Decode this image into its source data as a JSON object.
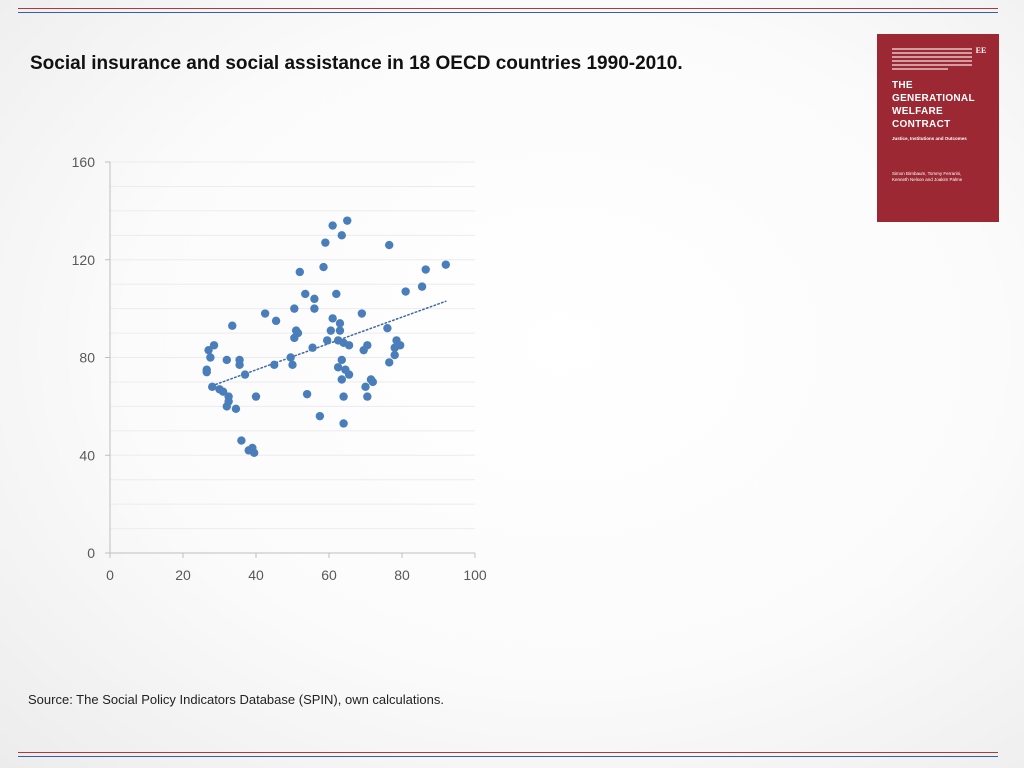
{
  "title": "Social insurance and social assistance in 18 OECD countries 1990-2010.",
  "source": "Source: The Social Policy Indicators Database (SPIN), own calculations.",
  "book_cover": {
    "logo_text": "EE",
    "title": "THE\nGENERATIONAL\nWELFARE\nCONTRACT",
    "subtitle": "Justice, Institutions and Outcomes",
    "authors": "Simon Birnbaum, Tommy Ferrarini,\nKenneth Nelson and Joakim Palme"
  },
  "chart_data": {
    "type": "scatter",
    "title": "",
    "xlabel": "",
    "ylabel": "",
    "xlim": [
      0,
      100
    ],
    "ylim": [
      0,
      160
    ],
    "xticks": [
      0,
      20,
      40,
      60,
      80,
      100
    ],
    "yticks": [
      0,
      40,
      80,
      120,
      160
    ],
    "marker_color": "#4a7ebb",
    "trendline": {
      "style": "dotted",
      "color": "#3e68a8",
      "x": [
        29,
        92
      ],
      "y": [
        69,
        103
      ]
    },
    "points": [
      {
        "x": 26.5,
        "y": 75
      },
      {
        "x": 26.5,
        "y": 74
      },
      {
        "x": 27,
        "y": 83
      },
      {
        "x": 27.5,
        "y": 80
      },
      {
        "x": 28,
        "y": 68
      },
      {
        "x": 28.5,
        "y": 85
      },
      {
        "x": 30,
        "y": 67
      },
      {
        "x": 31,
        "y": 66
      },
      {
        "x": 32,
        "y": 79
      },
      {
        "x": 32,
        "y": 60
      },
      {
        "x": 32.5,
        "y": 64
      },
      {
        "x": 32.5,
        "y": 62
      },
      {
        "x": 33.5,
        "y": 93
      },
      {
        "x": 34.5,
        "y": 59
      },
      {
        "x": 35.5,
        "y": 79
      },
      {
        "x": 35.5,
        "y": 77
      },
      {
        "x": 36,
        "y": 46
      },
      {
        "x": 37,
        "y": 73
      },
      {
        "x": 38,
        "y": 42
      },
      {
        "x": 39,
        "y": 43
      },
      {
        "x": 39.5,
        "y": 41
      },
      {
        "x": 40,
        "y": 64
      },
      {
        "x": 42.5,
        "y": 98
      },
      {
        "x": 45,
        "y": 77
      },
      {
        "x": 45.5,
        "y": 95
      },
      {
        "x": 49.5,
        "y": 80
      },
      {
        "x": 50,
        "y": 77
      },
      {
        "x": 50.5,
        "y": 100
      },
      {
        "x": 50.5,
        "y": 88
      },
      {
        "x": 51,
        "y": 91
      },
      {
        "x": 51.5,
        "y": 90
      },
      {
        "x": 52,
        "y": 115
      },
      {
        "x": 53.5,
        "y": 106
      },
      {
        "x": 54,
        "y": 65
      },
      {
        "x": 55.5,
        "y": 84
      },
      {
        "x": 56,
        "y": 100
      },
      {
        "x": 56,
        "y": 104
      },
      {
        "x": 57.5,
        "y": 56
      },
      {
        "x": 58.5,
        "y": 117
      },
      {
        "x": 59,
        "y": 127
      },
      {
        "x": 59.5,
        "y": 87
      },
      {
        "x": 60.5,
        "y": 91
      },
      {
        "x": 61,
        "y": 134
      },
      {
        "x": 61,
        "y": 96
      },
      {
        "x": 62,
        "y": 106
      },
      {
        "x": 62.5,
        "y": 87
      },
      {
        "x": 62.5,
        "y": 76
      },
      {
        "x": 63,
        "y": 94
      },
      {
        "x": 63,
        "y": 91
      },
      {
        "x": 63.5,
        "y": 130
      },
      {
        "x": 63.5,
        "y": 79
      },
      {
        "x": 63.5,
        "y": 71
      },
      {
        "x": 64,
        "y": 86
      },
      {
        "x": 64,
        "y": 64
      },
      {
        "x": 64,
        "y": 53
      },
      {
        "x": 64.5,
        "y": 75
      },
      {
        "x": 65,
        "y": 136
      },
      {
        "x": 65.5,
        "y": 73
      },
      {
        "x": 65.5,
        "y": 85
      },
      {
        "x": 69,
        "y": 98
      },
      {
        "x": 69.5,
        "y": 83
      },
      {
        "x": 70,
        "y": 68
      },
      {
        "x": 70.5,
        "y": 85
      },
      {
        "x": 70.5,
        "y": 64
      },
      {
        "x": 71.5,
        "y": 71
      },
      {
        "x": 72,
        "y": 70
      },
      {
        "x": 76,
        "y": 92
      },
      {
        "x": 76.5,
        "y": 126
      },
      {
        "x": 76.5,
        "y": 78
      },
      {
        "x": 78,
        "y": 84
      },
      {
        "x": 78,
        "y": 81
      },
      {
        "x": 78.5,
        "y": 87
      },
      {
        "x": 79.5,
        "y": 85
      },
      {
        "x": 81,
        "y": 107
      },
      {
        "x": 85.5,
        "y": 109
      },
      {
        "x": 86.5,
        "y": 116
      },
      {
        "x": 92,
        "y": 118
      }
    ]
  }
}
